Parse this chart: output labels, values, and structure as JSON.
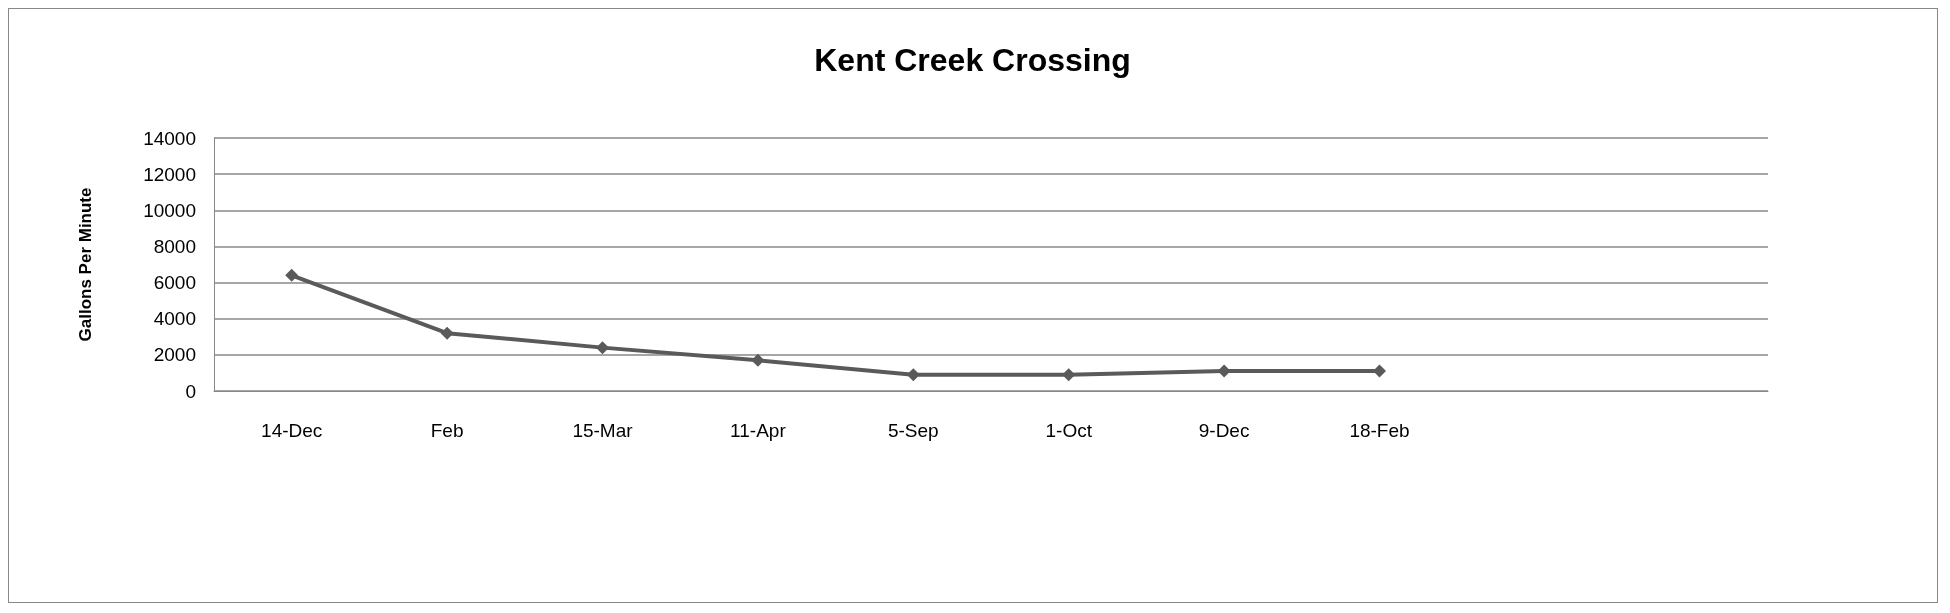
{
  "chart_data": {
    "type": "line",
    "title": "Kent Creek Crossing",
    "ylabel": "Gallons Per Minute",
    "categories": [
      "14-Dec",
      "Feb",
      "15-Mar",
      "11-Apr",
      "5-Sep",
      "1-Oct",
      "9-Dec",
      "18-Feb",
      null,
      null
    ],
    "series": [
      {
        "color": "#5a5a5a",
        "values": [
          6400,
          3200,
          2400,
          1700,
          900,
          900,
          1100,
          1100,
          null,
          null
        ]
      }
    ],
    "ylim": [
      0,
      14000
    ],
    "yticks": [
      0,
      2000,
      4000,
      6000,
      8000,
      10000,
      12000,
      14000
    ],
    "grid": "y",
    "marker": "diamond",
    "line_style": "solid"
  }
}
